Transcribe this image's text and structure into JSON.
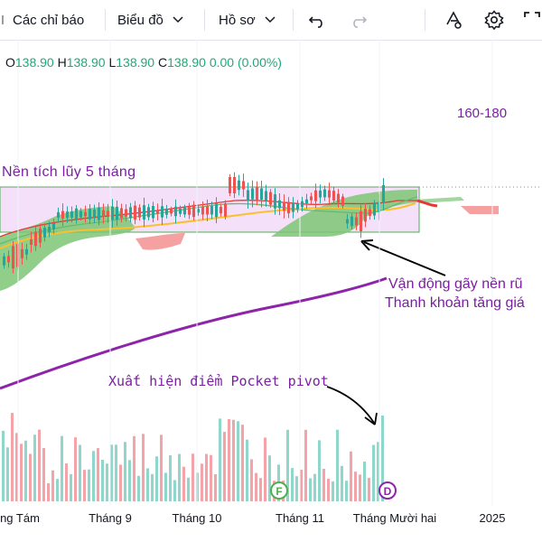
{
  "toolbar": {
    "indicators_label": "Các chỉ báo",
    "chart_type_label": "Biểu đồ",
    "profile_label": "Hồ sơ",
    "icons": [
      "undo-icon",
      "redo-icon",
      "replay-icon",
      "settings-icon",
      "fullscreen-icon"
    ]
  },
  "legend": {
    "o_label": "O",
    "o_value": "138.90",
    "h_label": "H",
    "h_value": "138.90",
    "l_label": "L",
    "l_value": "138.90",
    "c_label": "C",
    "c_value": "138.90",
    "change": "0.00 (0.00%)"
  },
  "annotations": {
    "target": "160-180",
    "base_label": "Nền tích lũy 5 tháng",
    "breakdown_line1": "Vận động gãy nền rũ",
    "breakdown_line2": "Thanh khoản tăng giá",
    "pocket_pivot": "Xuất hiện điểm Pocket pivot"
  },
  "x_axis": {
    "labels": [
      "ng Tám",
      "Tháng 9",
      "Tháng 10",
      "Tháng 11",
      "Tháng Mười hai",
      "2025"
    ]
  },
  "markers": {
    "f": "F",
    "d": "D"
  },
  "colors": {
    "up": "#26a69a",
    "down": "#ef5350",
    "annotation": "#7b1fa2",
    "base_box_fill": "#f0d6f5",
    "base_box_border": "#4caf50",
    "cloud_green": "#7cc576",
    "cloud_red": "#f48a8a",
    "ma_long": "#8e24aa",
    "ma_yellow": "#fbc02d",
    "ma_red": "#e53935",
    "ma_green": "#66bb6a",
    "vol_up": "#8fd6cb",
    "vol_down": "#f4a3a8"
  }
}
